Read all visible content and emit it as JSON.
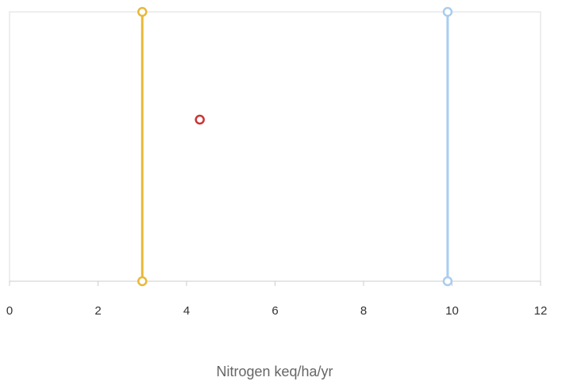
{
  "chart_data": {
    "type": "scatter",
    "title": "",
    "xlabel": "Nitrogen keq/ha/yr",
    "ylabel": "",
    "xlim": [
      0,
      12
    ],
    "ylim": [
      0,
      1
    ],
    "x_ticks": [
      0,
      2,
      4,
      6,
      8,
      10,
      12
    ],
    "x_tick_labels": [
      "0",
      "2",
      "4",
      "6",
      "8",
      "10",
      "12"
    ],
    "grid": false,
    "series": [
      {
        "type": "line",
        "color": "#e8b838",
        "points": [
          {
            "x": 3.0,
            "y": 0
          },
          {
            "x": 3.0,
            "y": 1
          }
        ]
      },
      {
        "type": "line",
        "color": "#a9cdef",
        "points": [
          {
            "x": 9.9,
            "y": 0
          },
          {
            "x": 9.9,
            "y": 1
          }
        ]
      },
      {
        "type": "scatter",
        "color": "#cc3333",
        "points": [
          {
            "x": 4.3,
            "y": 0.6
          }
        ]
      }
    ]
  }
}
